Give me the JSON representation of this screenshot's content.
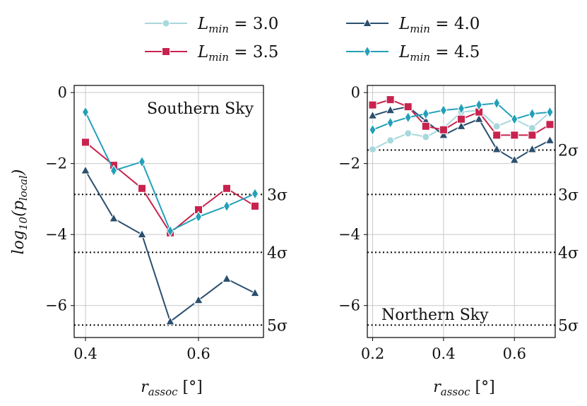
{
  "chart_data": [
    {
      "type": "line",
      "panel": "left",
      "annotation": "Southern Sky",
      "xlabel": "r_assoc [°]",
      "ylabel": "log10(p_local)",
      "xlim": [
        0.38,
        0.715
      ],
      "ylim": [
        -6.9,
        0.2
      ],
      "xticks": [
        0.4,
        0.6
      ],
      "xtick_labels": [
        "0.4",
        "0.6"
      ],
      "yticks": [
        0,
        -2,
        -4,
        -6
      ],
      "ytick_labels": [
        "0",
        "−2",
        "−4",
        "−6"
      ],
      "hlines": [
        {
          "y": -2.87,
          "label": "3σ"
        },
        {
          "y": -4.5,
          "label": "4σ"
        },
        {
          "y": -6.55,
          "label": "5σ"
        }
      ],
      "x": [
        0.4,
        0.45,
        0.5,
        0.55,
        0.6,
        0.65,
        0.7
      ],
      "series": [
        {
          "name": "L_min = 4.0",
          "values": [
            -2.2,
            -3.55,
            -4.0,
            -6.45,
            -5.85,
            -5.25,
            -5.65
          ]
        },
        {
          "name": "L_min = 3.5",
          "values": [
            -1.4,
            -2.05,
            -2.7,
            -3.95,
            -3.3,
            -2.7,
            -3.2
          ]
        },
        {
          "name": "L_min = 4.5",
          "values": [
            -0.55,
            -2.2,
            -1.95,
            -3.9,
            -3.5,
            -3.2,
            -2.85
          ]
        }
      ]
    },
    {
      "type": "line",
      "panel": "right",
      "annotation": "Northern Sky",
      "xlabel": "r_assoc [°]",
      "ylabel": "",
      "xlim": [
        0.185,
        0.715
      ],
      "ylim": [
        -6.9,
        0.2
      ],
      "xticks": [
        0.2,
        0.4,
        0.6
      ],
      "xtick_labels": [
        "0.2",
        "0.4",
        "0.6"
      ],
      "yticks": [
        0,
        -2,
        -4,
        -6
      ],
      "ytick_labels": [
        "0",
        "−2",
        "−4",
        "−6"
      ],
      "hlines": [
        {
          "y": -1.62,
          "label": "2σ"
        },
        {
          "y": -2.87,
          "label": "3σ"
        },
        {
          "y": -4.5,
          "label": "4σ"
        },
        {
          "y": -6.55,
          "label": "5σ"
        }
      ],
      "x": [
        0.2,
        0.25,
        0.3,
        0.35,
        0.4,
        0.45,
        0.5,
        0.55,
        0.6,
        0.65,
        0.7
      ],
      "series": [
        {
          "name": "L_min = 3.0",
          "values": [
            -1.6,
            -1.35,
            -1.15,
            -1.25,
            -1.0,
            -0.55,
            -0.5,
            -0.95,
            -0.75,
            -1.0,
            -0.55
          ]
        },
        {
          "name": "L_min = 4.0",
          "values": [
            -0.65,
            -0.5,
            -0.4,
            -0.8,
            -1.2,
            -0.95,
            -0.75,
            -1.6,
            -1.9,
            -1.6,
            -1.35
          ]
        },
        {
          "name": "L_min = 3.5",
          "values": [
            -0.35,
            -0.2,
            -0.4,
            -0.95,
            -1.05,
            -0.75,
            -0.55,
            -1.2,
            -1.2,
            -1.2,
            -0.9
          ]
        },
        {
          "name": "L_min = 4.5",
          "values": [
            -1.05,
            -0.85,
            -0.7,
            -0.6,
            -0.5,
            -0.45,
            -0.35,
            -0.3,
            -0.75,
            -0.6,
            -0.55
          ]
        }
      ]
    }
  ],
  "legend": [
    {
      "key": "L_min = 3.0",
      "label_main": "L",
      "label_sub": "min",
      "label_value": " = 3.0",
      "color": "#a8d8dc",
      "marker": "circle"
    },
    {
      "key": "L_min = 4.0",
      "label_main": "L",
      "label_sub": "min",
      "label_value": " = 4.0",
      "color": "#2a4e6e",
      "marker": "triangle"
    },
    {
      "key": "L_min = 3.5",
      "label_main": "L",
      "label_sub": "min",
      "label_value": " = 3.5",
      "color": "#c8234e",
      "marker": "square"
    },
    {
      "key": "L_min = 4.5",
      "label_main": "L",
      "label_sub": "min",
      "label_value": " = 4.5",
      "color": "#23a0b8",
      "marker": "diamond"
    }
  ],
  "axis_text": {
    "ylabel_main": "log",
    "ylabel_sub": "10",
    "ylabel_arg": "(p",
    "ylabel_argsub": "local",
    "ylabel_close": ")",
    "xlabel_main": "r",
    "xlabel_sub": "assoc",
    "xlabel_unit": " [°]"
  }
}
